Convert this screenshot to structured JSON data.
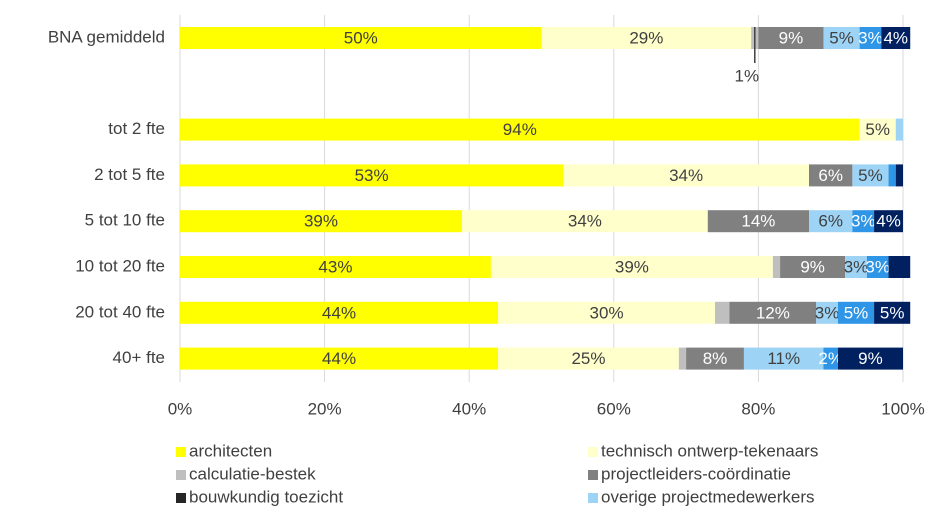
{
  "chart_data": {
    "type": "stacked-barh",
    "categories": [
      "BNA gemiddeld",
      null,
      "tot 2 fte",
      "2 tot 5 fte",
      "5 tot 10 fte",
      "10 tot 20 fte",
      "20 tot 40 fte",
      "40+ fte"
    ],
    "series": [
      {
        "name": "architecten",
        "color": "#ffff00",
        "values": [
          50,
          null,
          94,
          53,
          39,
          43,
          44,
          44
        ],
        "value_labels": [
          "50%",
          null,
          "94%",
          "53%",
          "39%",
          "43%",
          "44%",
          "44%"
        ]
      },
      {
        "name": "technisch ontwerp-tekenaars",
        "color": "#ffffcc",
        "values": [
          29,
          null,
          5,
          34,
          34,
          39,
          30,
          25
        ],
        "value_labels": [
          "29%",
          null,
          "5%",
          "34%",
          "34%",
          "39%",
          "30%",
          "25%"
        ]
      },
      {
        "name": "calculatie-bestek",
        "color": "#bfbfbf",
        "values": [
          1,
          null,
          0,
          0,
          0,
          1,
          2,
          1
        ],
        "value_labels": [
          "1%",
          null,
          null,
          null,
          null,
          null,
          null,
          null
        ]
      },
      {
        "name": "projectleiders-coördinatie",
        "color": "#808080",
        "values": [
          9,
          null,
          0,
          6,
          14,
          9,
          12,
          8
        ],
        "value_labels": [
          "9%",
          null,
          null,
          "6%",
          "14%",
          "9%",
          "12%",
          "8%"
        ]
      },
      {
        "name": "bouwkundig toezicht",
        "color": "#262626",
        "values": [
          0,
          null,
          0,
          0,
          0,
          0,
          0,
          0
        ],
        "value_labels": [
          null,
          null,
          null,
          null,
          null,
          null,
          null,
          null
        ]
      },
      {
        "name": "overige projectmedewerkers",
        "color": "#9dd3f5",
        "values": [
          5,
          null,
          1,
          5,
          6,
          3,
          3,
          11
        ],
        "value_labels": [
          "5%",
          null,
          null,
          "5%",
          "6%",
          "3%",
          "3%",
          "11%"
        ]
      },
      {
        "color": "#2f95e6",
        "values": [
          3,
          null,
          0,
          1,
          3,
          3,
          5,
          2
        ],
        "value_labels": [
          "3%",
          null,
          null,
          null,
          "3%",
          "3%",
          "5%",
          "2%"
        ]
      },
      {
        "color": "#002060",
        "values": [
          4,
          null,
          0,
          1,
          4,
          3,
          5,
          9
        ],
        "value_labels": [
          "4%",
          null,
          null,
          null,
          "4%",
          null,
          "5%",
          "9%"
        ]
      }
    ],
    "xlim": [
      0,
      100
    ],
    "xticks": [
      {
        "value": 0,
        "label": "0%"
      },
      {
        "value": 20,
        "label": "20%"
      },
      {
        "value": 40,
        "label": "40%"
      },
      {
        "value": 60,
        "label": "60%"
      },
      {
        "value": 80,
        "label": "80%"
      },
      {
        "value": 100,
        "label": "100%"
      }
    ],
    "grid": true
  }
}
